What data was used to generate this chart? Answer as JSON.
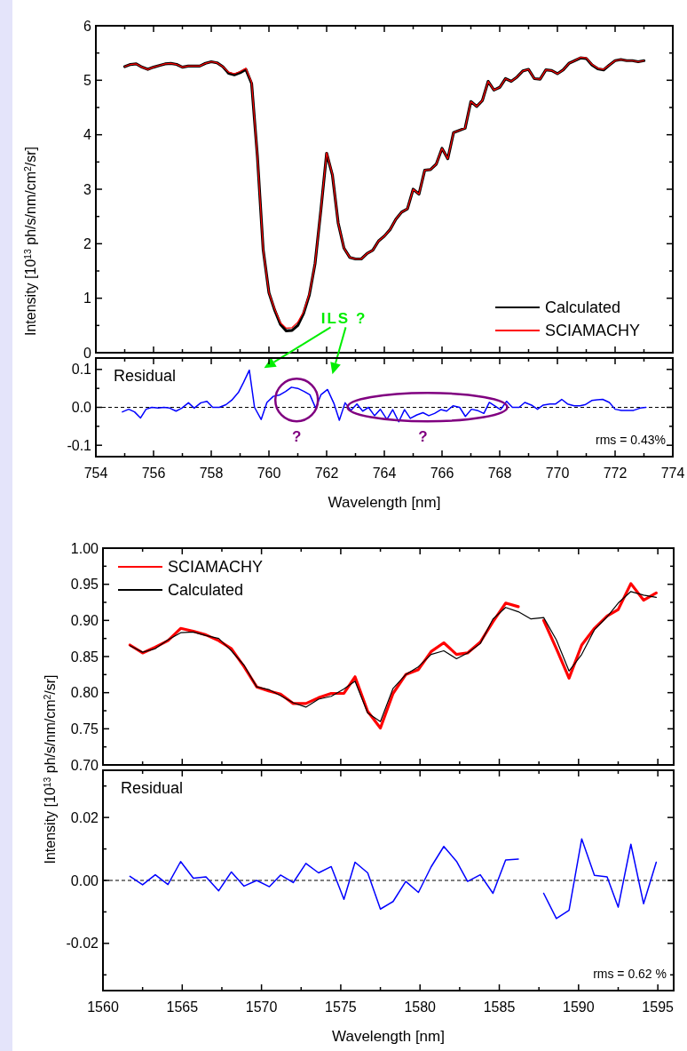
{
  "chart_data": [
    {
      "type": "line",
      "ylabel": "Intensity [10$^{13}$ ph/s/nm/cm$^{2}$/sr]",
      "xlim": [
        754,
        774
      ],
      "ylim": [
        0,
        6
      ],
      "xticks": [
        754,
        {
          "value": 755,
          "label": null
        },
        756,
        {
          "value": 757,
          "label": null
        },
        758,
        {
          "value": 759,
          "label": null
        },
        760,
        {
          "value": 761,
          "label": null
        },
        762,
        {
          "value": 763,
          "label": null
        },
        764,
        {
          "value": 765,
          "label": null
        },
        766,
        {
          "value": 767,
          "label": null
        },
        768,
        {
          "value": 769,
          "label": null
        },
        770,
        {
          "value": 771,
          "label": null
        },
        772,
        {
          "value": 773,
          "label": null
        },
        774
      ],
      "yticks": [
        0,
        {
          "value": 0.5,
          "label": null
        },
        1,
        {
          "value": 1.5,
          "label": null
        },
        2,
        {
          "value": 2.5,
          "label": null
        },
        3,
        {
          "value": 3.5,
          "label": null
        },
        4,
        {
          "value": 4.5,
          "label": null
        },
        5,
        {
          "value": 5.5,
          "label": null
        },
        6
      ],
      "tick_labels": "y",
      "legend": "bottom right",
      "grid": false,
      "marker": "none",
      "line_style": "solid",
      "x": [
        755.0,
        755.2,
        755.4,
        755.6,
        755.8,
        756.0,
        756.2,
        756.4,
        756.6,
        756.8,
        757.0,
        757.2,
        757.4,
        757.6,
        757.8,
        758.0,
        758.2,
        758.4,
        758.6,
        758.8,
        759.0,
        759.2,
        759.4,
        759.6,
        759.8,
        760.0,
        760.2,
        760.4,
        760.6,
        760.8,
        761.0,
        761.2,
        761.4,
        761.6,
        761.8,
        762.0,
        762.2,
        762.4,
        762.6,
        762.8,
        763.0,
        763.2,
        763.4,
        763.6,
        763.8,
        764.0,
        764.2,
        764.4,
        764.6,
        764.8,
        765.0,
        765.2,
        765.4,
        765.6,
        765.8,
        766.0,
        766.2,
        766.4,
        766.6,
        766.8,
        767.0,
        767.2,
        767.4,
        767.6,
        767.8,
        768.0,
        768.2,
        768.4,
        768.6,
        768.8,
        769.0,
        769.2,
        769.4,
        769.6,
        769.8,
        770.0,
        770.2,
        770.4,
        770.6,
        770.8,
        771.0,
        771.2,
        771.4,
        771.6,
        771.8,
        772.0,
        772.2,
        772.4,
        772.6,
        772.8,
        773.0
      ],
      "series": [
        {
          "name": "Calculated",
          "color": "#000000",
          "values": [
            5.25,
            5.29,
            5.3,
            5.24,
            5.2,
            5.24,
            5.27,
            5.3,
            5.31,
            5.29,
            5.24,
            5.26,
            5.26,
            5.26,
            5.31,
            5.34,
            5.32,
            5.25,
            5.13,
            5.1,
            5.14,
            5.2,
            4.94,
            3.6,
            1.89,
            1.1,
            0.78,
            0.52,
            0.4,
            0.41,
            0.5,
            0.72,
            1.06,
            1.64,
            2.62,
            3.66,
            3.26,
            2.38,
            1.92,
            1.75,
            1.72,
            1.72,
            1.82,
            1.88,
            2.05,
            2.14,
            2.26,
            2.45,
            2.58,
            2.64,
            3.0,
            2.91,
            3.35,
            3.36,
            3.46,
            3.75,
            3.56,
            4.04,
            4.08,
            4.12,
            4.61,
            4.52,
            4.63,
            4.98,
            4.82,
            4.87,
            5.03,
            4.98,
            5.06,
            5.17,
            5.2,
            5.03,
            5.02,
            5.19,
            5.18,
            5.12,
            5.19,
            5.31,
            5.36,
            5.41,
            5.4,
            5.28,
            5.21,
            5.19,
            5.28,
            5.36,
            5.38,
            5.36,
            5.36,
            5.34,
            5.36
          ]
        },
        {
          "name": "SCIAMACHY",
          "color": "#ff0000",
          "values": [
            5.25,
            5.29,
            5.3,
            5.24,
            5.2,
            5.24,
            5.27,
            5.3,
            5.31,
            5.29,
            5.24,
            5.26,
            5.26,
            5.26,
            5.31,
            5.34,
            5.32,
            5.25,
            5.15,
            5.12,
            5.16,
            5.22,
            4.96,
            3.6,
            1.89,
            1.1,
            0.8,
            0.55,
            0.45,
            0.46,
            0.56,
            0.75,
            1.08,
            1.64,
            2.62,
            3.67,
            3.27,
            2.38,
            1.92,
            1.75,
            1.72,
            1.72,
            1.82,
            1.88,
            2.05,
            2.14,
            2.26,
            2.45,
            2.58,
            2.64,
            3.0,
            2.91,
            3.35,
            3.36,
            3.46,
            3.75,
            3.56,
            4.04,
            4.08,
            4.12,
            4.61,
            4.52,
            4.63,
            4.98,
            4.82,
            4.87,
            5.03,
            4.98,
            5.06,
            5.17,
            5.2,
            5.03,
            5.02,
            5.19,
            5.18,
            5.12,
            5.19,
            5.31,
            5.36,
            5.42,
            5.41,
            5.29,
            5.22,
            5.2,
            5.28,
            5.36,
            5.38,
            5.36,
            5.36,
            5.34,
            5.36
          ]
        }
      ],
      "annotations": [
        "ILS ?"
      ]
    },
    {
      "type": "line",
      "xlabel": "Wavelength [nm]",
      "xlim": [
        754,
        774
      ],
      "ylim": [
        -0.13,
        0.13
      ],
      "xticks": [
        754,
        {
          "value": 755,
          "label": null
        },
        756,
        {
          "value": 757,
          "label": null
        },
        758,
        {
          "value": 759,
          "label": null
        },
        760,
        {
          "value": 761,
          "label": null
        },
        762,
        {
          "value": 763,
          "label": null
        },
        764,
        {
          "value": 765,
          "label": null
        },
        766,
        {
          "value": 767,
          "label": null
        },
        768,
        {
          "value": 769,
          "label": null
        },
        770,
        {
          "value": 771,
          "label": null
        },
        772,
        {
          "value": 773,
          "label": null
        },
        774
      ],
      "yticks": [
        -0.1,
        {
          "value": -0.05,
          "label": null
        },
        {
          "value": 0,
          "label": "0.0"
        },
        {
          "value": 0.05,
          "label": null
        },
        0.1
      ],
      "grid": false,
      "legend": false,
      "marker": "none",
      "line_style": "solid",
      "ref_lines": [
        {
          "axis": "y",
          "value": 0,
          "color": "#000000",
          "line_style": "dashed"
        }
      ],
      "series": [
        {
          "color": "#0000ff",
          "x": [
            754.92,
            755.14,
            755.34,
            755.55,
            755.74,
            755.94,
            756.16,
            756.36,
            756.56,
            756.78,
            756.98,
            757.21,
            757.41,
            757.64,
            757.85,
            758.05,
            758.28,
            758.51,
            758.71,
            758.94,
            759.12,
            759.32,
            759.5,
            759.73,
            759.93,
            760.15,
            760.38,
            760.58,
            760.78,
            761.0,
            761.22,
            761.42,
            761.62,
            761.8,
            762.03,
            762.26,
            762.44,
            762.64,
            762.84,
            763.05,
            763.25,
            763.45,
            763.66,
            763.86,
            764.09,
            764.29,
            764.5,
            764.7,
            764.9,
            765.13,
            765.34,
            765.54,
            765.74,
            765.96,
            766.16,
            766.38,
            766.61,
            766.81,
            767.02,
            767.22,
            767.45,
            767.64,
            767.83,
            768.03,
            768.24,
            768.44,
            768.67,
            768.87,
            769.1,
            769.31,
            769.51,
            769.74,
            769.94,
            770.15,
            770.35,
            770.58,
            770.78,
            770.96,
            771.19,
            771.38,
            771.57,
            771.8,
            772.0,
            772.22,
            772.43,
            772.64,
            772.87,
            773.07
          ],
          "values": [
            -0.012,
            -0.005,
            -0.012,
            -0.028,
            -0.005,
            0.0,
            -0.002,
            0.0,
            -0.002,
            -0.01,
            -0.002,
            0.012,
            -0.002,
            0.012,
            0.016,
            0.0,
            0.0,
            0.007,
            0.019,
            0.039,
            0.066,
            0.098,
            0.0,
            -0.032,
            0.013,
            0.029,
            0.033,
            0.042,
            0.053,
            0.05,
            0.042,
            0.033,
            -0.002,
            0.033,
            0.047,
            0.009,
            -0.034,
            0.012,
            -0.008,
            0.009,
            -0.01,
            0.0,
            -0.022,
            -0.005,
            -0.032,
            -0.006,
            -0.038,
            -0.006,
            -0.029,
            -0.02,
            -0.014,
            -0.022,
            -0.016,
            -0.006,
            -0.01,
            0.004,
            0.0,
            -0.024,
            -0.005,
            -0.008,
            -0.016,
            0.013,
            0.004,
            -0.006,
            0.016,
            0.0,
            0.0,
            0.013,
            0.006,
            -0.005,
            0.006,
            0.009,
            0.009,
            0.021,
            0.009,
            0.004,
            0.004,
            0.007,
            0.018,
            0.02,
            0.021,
            0.013,
            -0.005,
            -0.008,
            -0.008,
            -0.008,
            -0.002,
            0.0
          ]
        }
      ],
      "annotations": [
        "Residual",
        "rms = 0.43%",
        "?",
        "?"
      ]
    },
    {
      "type": "line",
      "ylabel": "Intensity [10$^{13}$ ph/s/nm/cm$^{2}$/sr]",
      "xlim": [
        1560,
        1596
      ],
      "ylim": [
        0.7,
        1.0
      ],
      "xticks": [
        1560,
        {
          "value": 1562.5,
          "label": null
        },
        1565,
        {
          "value": 1567.5,
          "label": null
        },
        1570,
        {
          "value": 1572.5,
          "label": null
        },
        1575,
        {
          "value": 1577.5,
          "label": null
        },
        1580,
        {
          "value": 1582.5,
          "label": null
        },
        1585,
        {
          "value": 1587.5,
          "label": null
        },
        1590,
        {
          "value": 1592.5,
          "label": null
        },
        1595
      ],
      "yticks": [
        {
          "value": 0.7,
          "label": "0.70"
        },
        {
          "value": 0.725,
          "label": null
        },
        0.75,
        {
          "value": 0.775,
          "label": null
        },
        {
          "value": 0.8,
          "label": "0.80"
        },
        {
          "value": 0.825,
          "label": null
        },
        0.85,
        {
          "value": 0.875,
          "label": null
        },
        {
          "value": 0.9,
          "label": "0.90"
        },
        {
          "value": 0.925,
          "label": null
        },
        0.95,
        {
          "value": 0.975,
          "label": null
        },
        {
          "value": 1.0,
          "label": "1.00"
        }
      ],
      "tick_labels": "y",
      "legend": "top left",
      "grid": false,
      "marker": "none",
      "line_style": "solid",
      "x": [
        1561.7,
        1562.5,
        1563.3,
        1564.1,
        1564.9,
        1565.7,
        1566.5,
        1567.3,
        1568.1,
        1568.9,
        1569.7,
        1570.5,
        1571.2,
        1572.0,
        1572.8,
        1573.6,
        1574.4,
        1575.2,
        1575.9,
        1576.7,
        1577.5,
        1578.3,
        1579.1,
        1579.9,
        1580.7,
        1581.5,
        1582.3,
        1583.0,
        1583.8,
        1584.6,
        1585.4,
        1586.2,
        1587.0,
        1587.8,
        1588.6,
        1589.4,
        1590.2,
        1591.0,
        1591.8,
        1592.5,
        1593.3,
        1594.1,
        1594.9
      ],
      "series": [
        {
          "name": "SCIAMACHY",
          "color": "#ff0000",
          "values": [
            0.866,
            0.855,
            0.863,
            0.872,
            0.889,
            0.885,
            0.88,
            0.872,
            0.861,
            0.836,
            0.808,
            0.802,
            0.798,
            0.785,
            0.785,
            0.793,
            0.799,
            0.799,
            0.822,
            0.774,
            0.751,
            0.799,
            0.825,
            0.832,
            0.857,
            0.869,
            0.853,
            0.855,
            0.87,
            0.898,
            0.924,
            0.919,
            null,
            0.9,
            0.861,
            0.82,
            0.866,
            0.889,
            0.906,
            0.915,
            0.951,
            0.928,
            0.938
          ]
        },
        {
          "name": "Calculated",
          "color": "#000000",
          "values": [
            0.865,
            0.856,
            0.861,
            0.873,
            0.883,
            0.884,
            0.879,
            0.875,
            0.858,
            0.838,
            0.808,
            0.804,
            0.796,
            0.786,
            0.78,
            0.791,
            0.795,
            0.805,
            0.816,
            0.772,
            0.76,
            0.806,
            0.825,
            0.836,
            0.853,
            0.858,
            0.847,
            0.855,
            0.868,
            0.902,
            0.918,
            0.912,
            0.902,
            0.904,
            0.873,
            0.83,
            0.853,
            0.887,
            0.905,
            0.924,
            0.94,
            0.935,
            0.932
          ]
        }
      ]
    },
    {
      "type": "line",
      "xlabel": "Wavelength [nm]",
      "xlim": [
        1560,
        1596
      ],
      "ylim": [
        -0.035,
        0.035
      ],
      "xticks": [
        1560,
        {
          "value": 1562.5,
          "label": null
        },
        1565,
        {
          "value": 1567.5,
          "label": null
        },
        1570,
        {
          "value": 1572.5,
          "label": null
        },
        1575,
        {
          "value": 1577.5,
          "label": null
        },
        1580,
        {
          "value": 1582.5,
          "label": null
        },
        1585,
        {
          "value": 1587.5,
          "label": null
        },
        1590,
        {
          "value": 1592.5,
          "label": null
        },
        1595
      ],
      "yticks": [
        {
          "value": -0.03,
          "label": null
        },
        -0.02,
        {
          "value": -0.01,
          "label": null
        },
        {
          "value": 0,
          "label": "0.00"
        },
        {
          "value": 0.01,
          "label": null
        },
        0.02,
        {
          "value": 0.03,
          "label": null
        }
      ],
      "grid": false,
      "legend": false,
      "marker": "none",
      "line_style": "solid",
      "ref_lines": [
        {
          "axis": "y",
          "value": 0,
          "color": "#000000",
          "line_style": "dashed"
        }
      ],
      "x": [
        1561.7,
        1562.5,
        1563.3,
        1564.1,
        1564.9,
        1565.7,
        1566.5,
        1567.3,
        1568.1,
        1568.9,
        1569.7,
        1570.5,
        1571.2,
        1572.0,
        1572.8,
        1573.6,
        1574.4,
        1575.2,
        1575.9,
        1576.7,
        1577.5,
        1578.3,
        1579.1,
        1579.9,
        1580.7,
        1581.5,
        1582.3,
        1583.0,
        1583.8,
        1584.6,
        1585.4,
        1586.2,
        1587.0,
        1587.8,
        1588.6,
        1589.4,
        1590.2,
        1591.0,
        1591.8,
        1592.5,
        1593.3,
        1594.1,
        1594.9
      ],
      "series": [
        {
          "color": "#0000ff",
          "values": [
            0.0013,
            -0.0014,
            0.0018,
            -0.0013,
            0.006,
            0.0007,
            0.0011,
            -0.0033,
            0.0027,
            -0.0018,
            0.0,
            -0.002,
            0.0017,
            -0.0007,
            0.0054,
            0.0024,
            0.0044,
            -0.006,
            0.0058,
            0.0024,
            -0.0091,
            -0.0067,
            -0.0003,
            -0.0038,
            0.0043,
            0.0108,
            0.0061,
            -0.0003,
            0.0018,
            -0.0041,
            0.0065,
            0.0068,
            null,
            -0.0041,
            -0.0121,
            -0.0095,
            0.0132,
            0.0016,
            0.0011,
            -0.0085,
            0.0115,
            -0.0074,
            0.0058
          ]
        }
      ],
      "annotations": [
        "Residual",
        "rms = 0.62 %"
      ]
    }
  ]
}
